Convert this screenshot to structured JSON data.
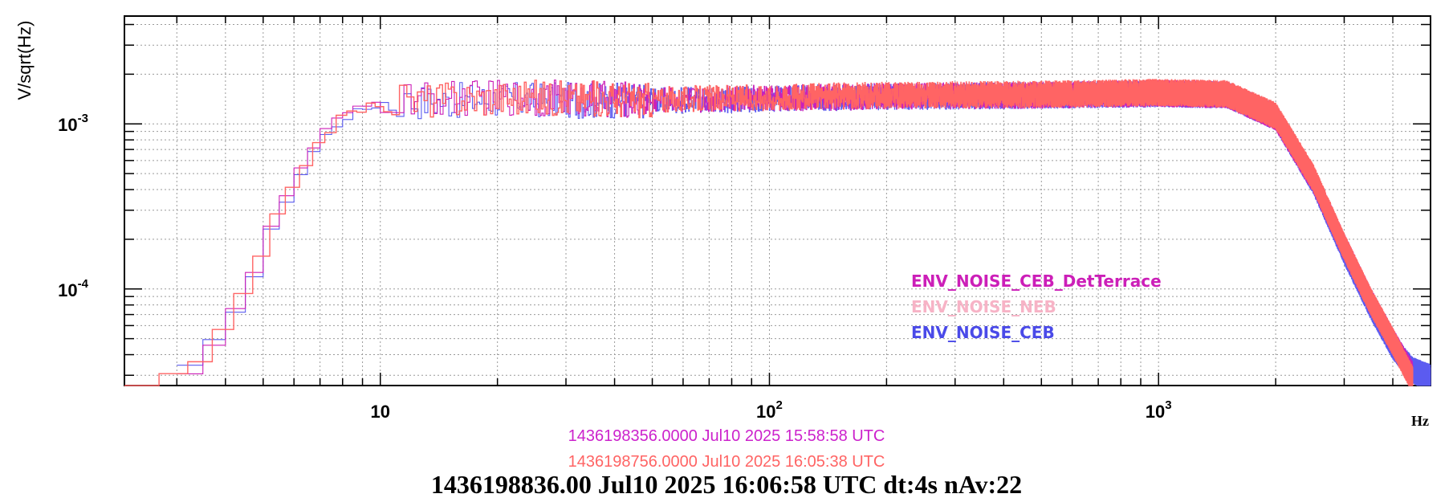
{
  "chart_data": {
    "type": "line",
    "xscale": "log",
    "yscale": "log",
    "xlim": [
      2.2,
      5000
    ],
    "ylim": [
      2.6e-05,
      0.0045
    ],
    "ylabel": "V/sqrt(Hz)",
    "xunit": "Hz",
    "x_ticks": [
      {
        "value": 10,
        "label": "10",
        "base": "",
        "exp": ""
      },
      {
        "value": 100,
        "label": "",
        "base": "10",
        "exp": "2"
      },
      {
        "value": 1000,
        "label": "",
        "base": "10",
        "exp": "3"
      }
    ],
    "y_ticks": [
      {
        "value": 0.001,
        "base": "10",
        "exp": "-3"
      },
      {
        "value": 0.0001,
        "base": "10",
        "exp": "-4"
      }
    ],
    "grid": true,
    "legend_position": "right-center",
    "legend": [
      {
        "name": "ENV_NOISE_CEB_DetTerrace",
        "color": "#cc1fb8"
      },
      {
        "name": "ENV_NOISE_NEB",
        "color": "#f7b3c6"
      },
      {
        "name": "ENV_NOISE_CEB",
        "color": "#4a4ae8"
      }
    ],
    "series": [
      {
        "name": "ENV_NOISE_CEB",
        "color": "#5b5bf0",
        "x": [
          3,
          3.5,
          4,
          4.5,
          5,
          5.5,
          6,
          6.5,
          7,
          7.5,
          8,
          9,
          10,
          20,
          50,
          100,
          200,
          500,
          1000,
          1500,
          2000,
          2500,
          3000,
          3500,
          4000,
          4500,
          5000
        ],
        "y": [
          3.3e-05,
          4.7e-05,
          7.6e-05,
          0.00012,
          0.00022,
          0.00035,
          0.0005,
          0.00068,
          0.00085,
          0.00099,
          0.00111,
          0.00124,
          0.00135,
          0.0014,
          0.00138,
          0.00142,
          0.00146,
          0.00149,
          0.00152,
          0.0015,
          0.0011,
          0.00045,
          0.00017,
          8e-05,
          4.5e-05,
          3.2e-05,
          2.9e-05
        ]
      },
      {
        "name": "ENV_NOISE_CEB_DetTerrace",
        "color": "#cc1fb8",
        "x": [
          3,
          3.5,
          4,
          4.5,
          5,
          5.5,
          6,
          6.5,
          7,
          7.5,
          8,
          9,
          10,
          20,
          50,
          100,
          200,
          500,
          1000,
          1500,
          2000,
          2500,
          3000,
          3500,
          4000,
          4500
        ],
        "y": [
          3.2e-05,
          4.6e-05,
          7.8e-05,
          0.000125,
          0.00023,
          0.00037,
          0.00053,
          0.00072,
          0.0009,
          0.00104,
          0.00116,
          0.00127,
          0.00138,
          0.00145,
          0.0014,
          0.00143,
          0.00147,
          0.00149,
          0.00153,
          0.0015,
          0.0011,
          0.00046,
          0.00018,
          8.5e-05,
          4.8e-05,
          3e-05
        ]
      },
      {
        "name": "ENV_NOISE_NEB",
        "color": "#ff6464",
        "x": [
          2.2,
          3,
          3.5,
          4,
          4.5,
          5,
          5.5,
          6,
          6.5,
          7,
          7.5,
          8,
          9,
          10,
          20,
          50,
          100,
          200,
          500,
          1000,
          1500,
          2000,
          2500,
          3000,
          3500,
          4000,
          4500
        ],
        "y": [
          2.6e-05,
          3.1e-05,
          4.5e-05,
          7.4e-05,
          0.00012,
          0.00022,
          0.00036,
          0.00052,
          0.0007,
          0.00088,
          0.00102,
          0.00114,
          0.00126,
          0.00137,
          0.00145,
          0.0014,
          0.00145,
          0.00149,
          0.00151,
          0.00155,
          0.00152,
          0.00112,
          0.00047,
          0.00018,
          8.5e-05,
          4.8e-05,
          2.8e-05
        ]
      }
    ]
  },
  "timestamps": [
    {
      "text": "1436198356.0000 Jul10 2025 15:58:58 UTC",
      "color": "#cc22cc"
    },
    {
      "text": "1436198756.0000 Jul10 2025 16:05:38 UTC",
      "color": "#ff6464"
    }
  ],
  "caption": "1436198836.00 Jul10 2025 16:06:58 UTC dt:4s nAv:22"
}
